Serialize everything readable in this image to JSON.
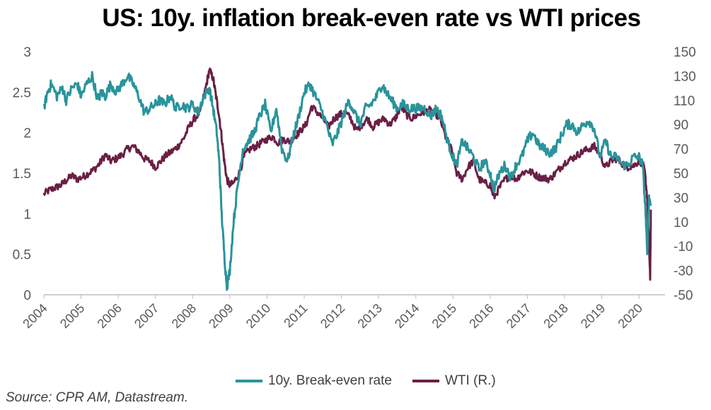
{
  "chart_data": {
    "type": "line",
    "title": "US: 10y. inflation break-even rate vs WTI prices",
    "source": "Source: CPR AM, Datastream.",
    "grid": false,
    "legend_position": "bottom",
    "x_ticks": [
      "2004",
      "2005",
      "2006",
      "2007",
      "2008",
      "2009",
      "2010",
      "2011",
      "2012",
      "2013",
      "2014",
      "2015",
      "2016",
      "2017",
      "2018",
      "2019",
      "2020"
    ],
    "left_axis": {
      "min": 0,
      "max": 3,
      "ticks": [
        "0",
        "0.5",
        "1",
        "1.5",
        "2",
        "2.5",
        "3"
      ]
    },
    "right_axis": {
      "min": -50,
      "max": 150,
      "ticks": [
        "-50",
        "-30",
        "-10",
        "10",
        "30",
        "50",
        "70",
        "90",
        "110",
        "130",
        "150"
      ]
    },
    "colors": {
      "breakeven": "#2a939b",
      "wti": "#6a1f45",
      "axis": "#bfbfbf"
    },
    "series": [
      {
        "name": "10y. Break-even rate",
        "axis": "left",
        "x": [
          2004.0,
          2004.1,
          2004.2,
          2004.35,
          2004.5,
          2004.6,
          2004.75,
          2004.9,
          2005.0,
          2005.15,
          2005.3,
          2005.45,
          2005.55,
          2005.65,
          2005.8,
          2005.95,
          2006.1,
          2006.25,
          2006.4,
          2006.55,
          2006.7,
          2006.85,
          2007.0,
          2007.1,
          2007.25,
          2007.4,
          2007.55,
          2007.7,
          2007.85,
          2008.0,
          2008.15,
          2008.3,
          2008.45,
          2008.55,
          2008.65,
          2008.72,
          2008.78,
          2008.85,
          2008.92,
          2009.0,
          2009.1,
          2009.2,
          2009.35,
          2009.5,
          2009.65,
          2009.8,
          2009.95,
          2010.1,
          2010.25,
          2010.4,
          2010.55,
          2010.7,
          2010.85,
          2011.0,
          2011.15,
          2011.3,
          2011.45,
          2011.6,
          2011.75,
          2011.9,
          2012.05,
          2012.2,
          2012.35,
          2012.5,
          2012.65,
          2012.8,
          2012.95,
          2013.1,
          2013.2,
          2013.35,
          2013.5,
          2013.65,
          2013.8,
          2013.95,
          2014.1,
          2014.25,
          2014.4,
          2014.55,
          2014.7,
          2014.85,
          2015.0,
          2015.1,
          2015.25,
          2015.4,
          2015.55,
          2015.7,
          2015.85,
          2016.0,
          2016.1,
          2016.25,
          2016.4,
          2016.55,
          2016.7,
          2016.85,
          2017.0,
          2017.15,
          2017.3,
          2017.45,
          2017.6,
          2017.75,
          2017.9,
          2018.05,
          2018.2,
          2018.35,
          2018.5,
          2018.65,
          2018.8,
          2018.95,
          2019.1,
          2019.25,
          2019.4,
          2019.55,
          2019.7,
          2019.85,
          2020.0,
          2020.1,
          2020.18,
          2020.22,
          2020.27,
          2020.32
        ],
        "values": [
          2.3,
          2.5,
          2.6,
          2.45,
          2.55,
          2.4,
          2.55,
          2.6,
          2.45,
          2.6,
          2.7,
          2.4,
          2.5,
          2.45,
          2.6,
          2.5,
          2.6,
          2.7,
          2.6,
          2.45,
          2.25,
          2.3,
          2.35,
          2.4,
          2.35,
          2.45,
          2.3,
          2.35,
          2.3,
          2.35,
          2.25,
          2.45,
          2.55,
          2.3,
          2.0,
          1.6,
          1.0,
          0.5,
          0.1,
          0.3,
          0.9,
          1.3,
          1.8,
          1.9,
          2.0,
          2.2,
          2.35,
          2.0,
          2.3,
          1.8,
          1.65,
          1.95,
          2.2,
          2.5,
          2.6,
          2.45,
          2.3,
          2.1,
          1.85,
          2.0,
          2.2,
          2.4,
          2.25,
          2.1,
          2.3,
          2.35,
          2.45,
          2.6,
          2.5,
          2.4,
          2.3,
          2.35,
          2.3,
          2.3,
          2.3,
          2.3,
          2.2,
          2.3,
          2.2,
          1.9,
          1.7,
          1.6,
          1.9,
          1.8,
          1.7,
          1.55,
          1.65,
          1.5,
          1.3,
          1.5,
          1.6,
          1.45,
          1.6,
          1.7,
          1.9,
          2.0,
          1.85,
          1.8,
          1.75,
          1.8,
          1.95,
          2.1,
          2.1,
          2.0,
          2.1,
          2.15,
          2.05,
          1.7,
          1.9,
          1.7,
          1.7,
          1.6,
          1.6,
          1.7,
          1.7,
          1.6,
          1.0,
          0.5,
          1.2,
          1.1
        ]
      },
      {
        "name": "WTI (R.)",
        "axis": "right",
        "x": [
          2004.0,
          2004.15,
          2004.3,
          2004.45,
          2004.6,
          2004.75,
          2004.9,
          2005.05,
          2005.2,
          2005.35,
          2005.5,
          2005.65,
          2005.8,
          2005.95,
          2006.1,
          2006.25,
          2006.4,
          2006.55,
          2006.7,
          2006.85,
          2007.0,
          2007.15,
          2007.3,
          2007.45,
          2007.6,
          2007.75,
          2007.9,
          2008.05,
          2008.2,
          2008.35,
          2008.45,
          2008.55,
          2008.62,
          2008.7,
          2008.78,
          2008.85,
          2008.92,
          2009.0,
          2009.1,
          2009.25,
          2009.4,
          2009.55,
          2009.7,
          2009.85,
          2010.0,
          2010.15,
          2010.3,
          2010.45,
          2010.6,
          2010.75,
          2010.9,
          2011.05,
          2011.2,
          2011.35,
          2011.5,
          2011.65,
          2011.8,
          2011.95,
          2012.1,
          2012.25,
          2012.4,
          2012.55,
          2012.7,
          2012.85,
          2013.0,
          2013.15,
          2013.3,
          2013.45,
          2013.6,
          2013.75,
          2013.9,
          2014.05,
          2014.2,
          2014.35,
          2014.5,
          2014.65,
          2014.8,
          2014.95,
          2015.1,
          2015.25,
          2015.4,
          2015.55,
          2015.7,
          2015.85,
          2016.0,
          2016.1,
          2016.25,
          2016.4,
          2016.55,
          2016.7,
          2016.85,
          2017.0,
          2017.15,
          2017.3,
          2017.45,
          2017.6,
          2017.75,
          2017.9,
          2018.05,
          2018.2,
          2018.35,
          2018.5,
          2018.65,
          2018.8,
          2018.95,
          2019.1,
          2019.25,
          2019.4,
          2019.55,
          2019.7,
          2019.85,
          2020.0,
          2020.1,
          2020.16,
          2020.22,
          2020.27,
          2020.3,
          2020.32
        ],
        "values": [
          33,
          36,
          38,
          40,
          44,
          48,
          45,
          47,
          50,
          53,
          58,
          65,
          60,
          62,
          65,
          70,
          72,
          68,
          62,
          60,
          55,
          60,
          65,
          68,
          72,
          78,
          88,
          95,
          100,
          120,
          135,
          128,
          115,
          100,
          80,
          60,
          45,
          40,
          42,
          50,
          65,
          70,
          72,
          75,
          78,
          80,
          75,
          78,
          76,
          80,
          85,
          90,
          105,
          100,
          95,
          88,
          95,
          98,
          100,
          95,
          85,
          90,
          95,
          88,
          92,
          95,
          90,
          95,
          105,
          98,
          95,
          98,
          100,
          102,
          100,
          95,
          80,
          70,
          50,
          45,
          55,
          60,
          45,
          42,
          40,
          30,
          38,
          45,
          48,
          45,
          50,
          52,
          50,
          47,
          46,
          45,
          50,
          55,
          60,
          62,
          65,
          68,
          70,
          72,
          65,
          55,
          60,
          62,
          58,
          55,
          56,
          60,
          58,
          50,
          30,
          -10,
          -37,
          20
        ]
      }
    ]
  }
}
